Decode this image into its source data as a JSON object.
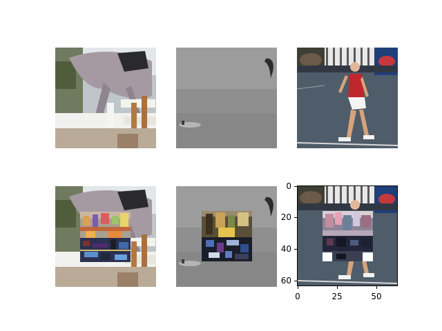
{
  "figure": {
    "panels": [
      {
        "row": 1,
        "col": 1,
        "subject": "horse jumping over white fence",
        "patched": false
      },
      {
        "row": 1,
        "col": 2,
        "subject": "kitesurfer on grey sea",
        "patched": false
      },
      {
        "row": 1,
        "col": 3,
        "subject": "tennis player in red shirt walking on court",
        "patched": false
      },
      {
        "row": 2,
        "col": 1,
        "subject": "horse jumping over white fence",
        "patched": true
      },
      {
        "row": 2,
        "col": 2,
        "subject": "kitesurfer on grey sea",
        "patched": true
      },
      {
        "row": 2,
        "col": 3,
        "subject": "tennis player in red shirt walking on court",
        "patched": true,
        "has_axes": true
      }
    ],
    "axes": {
      "y_ticks": [
        "0",
        "20",
        "40",
        "60"
      ],
      "x_ticks": [
        "0",
        "25",
        "50"
      ],
      "x_range": [
        0,
        64
      ],
      "y_range": [
        64,
        0
      ]
    },
    "colors": {
      "horse_sky": "#dfe3e6",
      "horse_body": "#9a8f95",
      "fence": "#f2f2f0",
      "sea": "#8f9091",
      "court": "#4a5866",
      "shirt": "#c0272d"
    }
  }
}
